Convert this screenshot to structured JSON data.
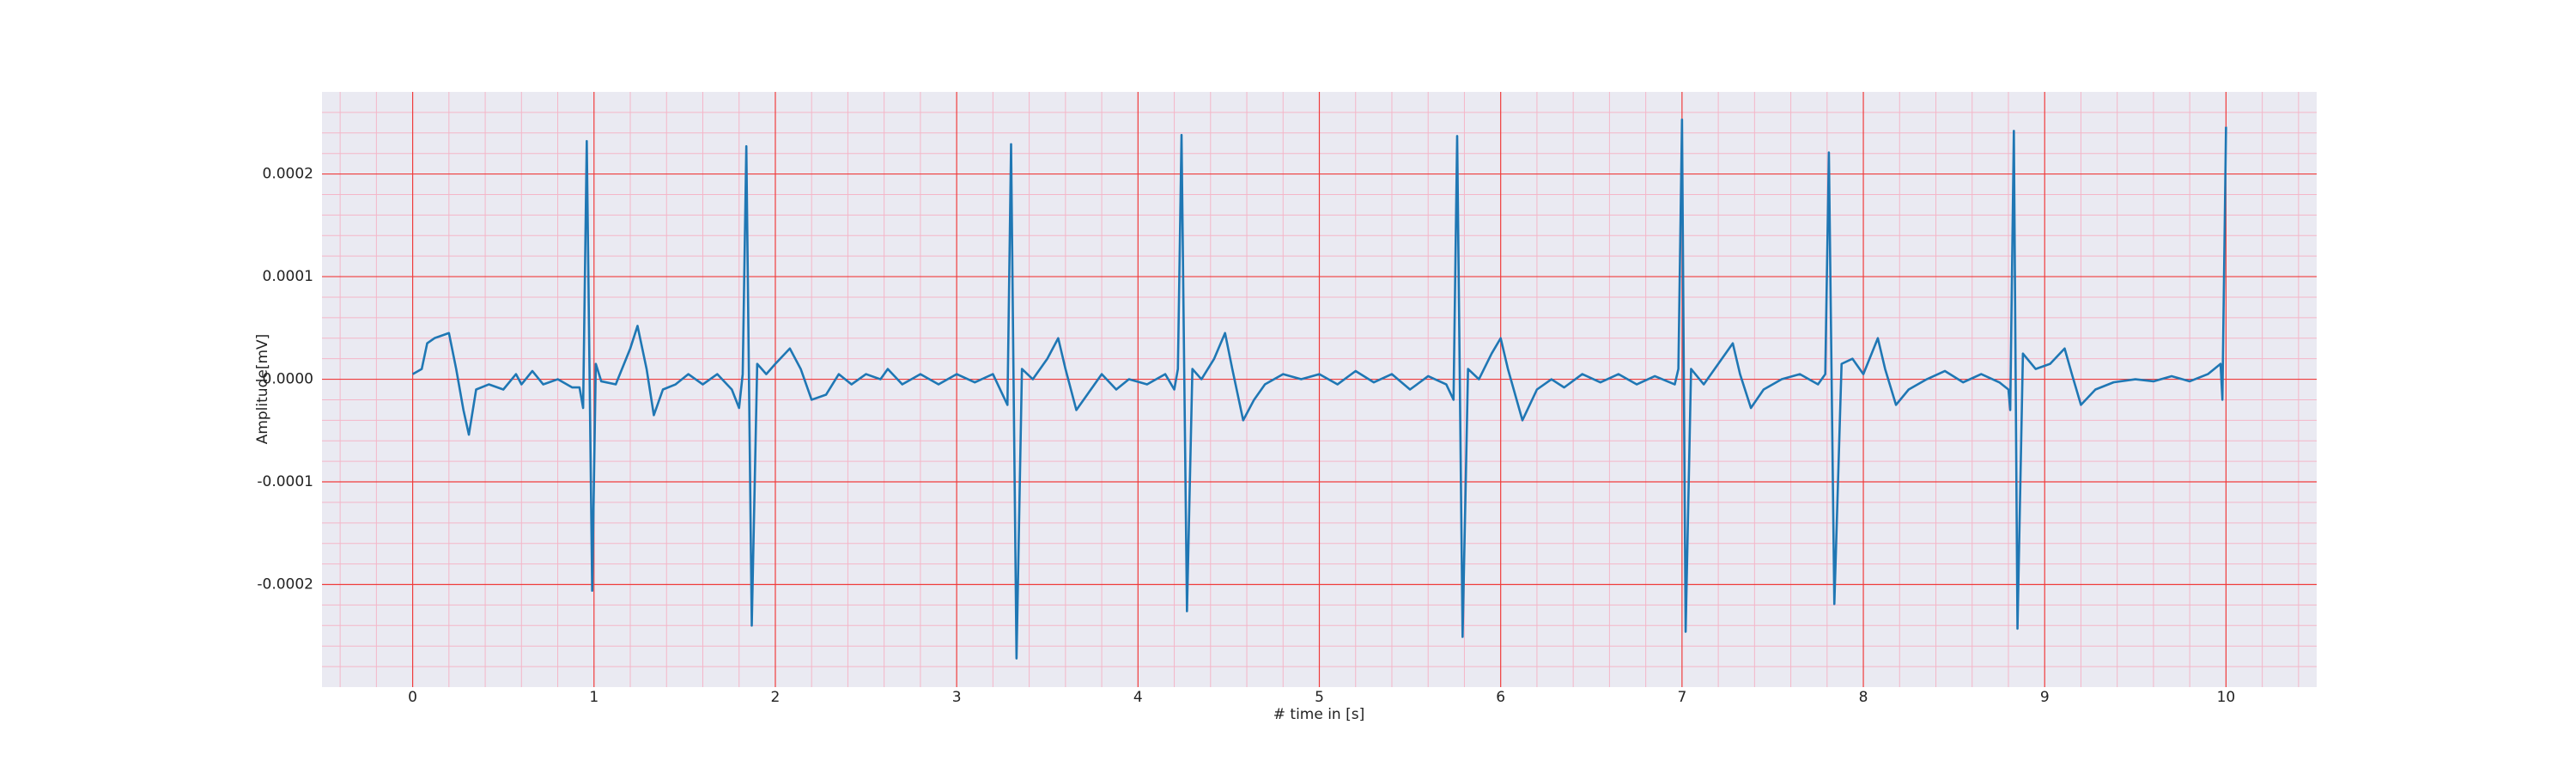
{
  "chart_data": {
    "type": "line",
    "xlabel": "# time in [s]",
    "ylabel": "Amplitude[mV]",
    "xlim": [
      -0.5,
      10.5
    ],
    "ylim": [
      -0.0003,
      0.00028
    ],
    "xticks": [
      0,
      1,
      2,
      3,
      4,
      5,
      6,
      7,
      8,
      9,
      10
    ],
    "yticks": [
      -0.0002,
      -0.0001,
      {
        "value": 0,
        "label": "0.0000"
      },
      0.0001,
      0.0002
    ],
    "xminorticks": [
      -0.4,
      -0.2,
      0.2,
      0.4,
      0.6,
      0.8,
      1.2,
      1.4,
      1.6,
      1.8,
      2.2,
      2.4,
      2.6,
      2.8,
      3.2,
      3.4,
      3.6,
      3.8,
      4.2,
      4.4,
      4.6,
      4.8,
      5.2,
      5.4,
      5.6,
      5.8,
      6.2,
      6.4,
      6.6,
      6.8,
      7.2,
      7.4,
      7.6,
      7.8,
      8.2,
      8.4,
      8.6,
      8.8,
      9.2,
      9.4,
      9.6,
      9.8,
      10.2,
      10.4
    ],
    "yminorticks": [
      -0.00028,
      -0.00026,
      -0.00024,
      -0.00022,
      -0.00018,
      -0.00016,
      -0.00014,
      -0.00012,
      -8e-05,
      -6e-05,
      -4e-05,
      -2e-05,
      2e-05,
      4e-05,
      6e-05,
      8e-05,
      0.00012,
      0.00014,
      0.00016,
      0.00018,
      0.00022,
      0.00024,
      0.00026
    ],
    "grid": true,
    "color": "#1f77b4",
    "x": [
      0,
      0.05,
      0.08,
      0.12,
      0.2,
      0.24,
      0.28,
      0.31,
      0.35,
      0.42,
      0.5,
      0.57,
      0.6,
      0.66,
      0.72,
      0.8,
      0.88,
      0.92,
      0.94,
      0.96,
      0.99,
      1.01,
      1.04,
      1.12,
      1.2,
      1.24,
      1.29,
      1.33,
      1.38,
      1.45,
      1.52,
      1.6,
      1.68,
      1.76,
      1.8,
      1.82,
      1.84,
      1.87,
      1.9,
      1.95,
      2.0,
      2.08,
      2.14,
      2.2,
      2.28,
      2.35,
      2.42,
      2.5,
      2.58,
      2.62,
      2.7,
      2.8,
      2.9,
      3.0,
      3.1,
      3.2,
      3.28,
      3.3,
      3.33,
      3.36,
      3.42,
      3.5,
      3.56,
      3.6,
      3.66,
      3.72,
      3.8,
      3.88,
      3.95,
      4.05,
      4.15,
      4.2,
      4.22,
      4.24,
      4.27,
      4.3,
      4.35,
      4.42,
      4.48,
      4.52,
      4.58,
      4.64,
      4.7,
      4.8,
      4.9,
      5.0,
      5.1,
      5.2,
      5.3,
      5.4,
      5.5,
      5.6,
      5.7,
      5.74,
      5.76,
      5.79,
      5.82,
      5.88,
      5.95,
      6.0,
      6.04,
      6.12,
      6.2,
      6.28,
      6.35,
      6.45,
      6.55,
      6.65,
      6.75,
      6.85,
      6.96,
      6.98,
      7.0,
      7.02,
      7.05,
      7.12,
      7.2,
      7.28,
      7.32,
      7.38,
      7.45,
      7.55,
      7.65,
      7.75,
      7.79,
      7.81,
      7.84,
      7.88,
      7.94,
      8.0,
      8.08,
      8.12,
      8.18,
      8.25,
      8.35,
      8.45,
      8.55,
      8.65,
      8.75,
      8.8,
      8.81,
      8.83,
      8.85,
      8.88,
      8.95,
      9.03,
      9.11,
      9.15,
      9.2,
      9.28,
      9.38,
      9.5,
      9.6,
      9.7,
      9.8,
      9.9,
      9.97,
      9.98,
      10.0
    ],
    "values": [
      5e-06,
      1e-05,
      3.5e-05,
      4e-05,
      4.5e-05,
      1e-05,
      -3e-05,
      -5.4e-05,
      -1e-05,
      -5e-06,
      -1e-05,
      5e-06,
      -5e-06,
      8e-06,
      -5e-06,
      0,
      -8e-06,
      -8e-06,
      -2.8e-05,
      0.000232,
      -0.000206,
      1.5e-05,
      -2e-06,
      -5e-06,
      3e-05,
      5.2e-05,
      1e-05,
      -3.5e-05,
      -1e-05,
      -5e-06,
      5e-06,
      -5e-06,
      5e-06,
      -1e-05,
      -2.8e-05,
      5e-06,
      0.000227,
      -0.00024,
      1.5e-05,
      5e-06,
      1.5e-05,
      3e-05,
      1e-05,
      -2e-05,
      -1.5e-05,
      5e-06,
      -5e-06,
      5e-06,
      0,
      1e-05,
      -5e-06,
      5e-06,
      -5e-06,
      5e-06,
      -3e-06,
      5e-06,
      -2.5e-05,
      0.000229,
      -0.000272,
      1e-05,
      0,
      2e-05,
      4e-05,
      1e-05,
      -3e-05,
      -1.5e-05,
      5e-06,
      -1e-05,
      0,
      -5e-06,
      5e-06,
      -1e-05,
      1e-05,
      0.000238,
      -0.000226,
      1e-05,
      0,
      2e-05,
      4.5e-05,
      1e-05,
      -4e-05,
      -2e-05,
      -5e-06,
      5e-06,
      0,
      5e-06,
      -5e-06,
      8e-06,
      -3e-06,
      5e-06,
      -1e-05,
      3e-06,
      -5e-06,
      -2e-05,
      0.000237,
      -0.000251,
      1e-05,
      0,
      2.5e-05,
      4e-05,
      1e-05,
      -4e-05,
      -1e-05,
      0,
      -8e-06,
      5e-06,
      -3e-06,
      5e-06,
      -5e-06,
      3e-06,
      -5e-06,
      1e-05,
      0.000253,
      -0.000246,
      1e-05,
      -5e-06,
      1.5e-05,
      3.5e-05,
      5e-06,
      -2.8e-05,
      -1e-05,
      0,
      5e-06,
      -5e-06,
      5e-06,
      0.000221,
      -0.000219,
      1.5e-05,
      2e-05,
      5e-06,
      4e-05,
      1e-05,
      -2.5e-05,
      -1e-05,
      0,
      8e-06,
      -3e-06,
      5e-06,
      -3e-06,
      -1e-05,
      -3e-05,
      0.000242,
      -0.000243,
      2.5e-05,
      1e-05,
      1.5e-05,
      3e-05,
      5e-06,
      -2.5e-05,
      -1e-05,
      -3e-06,
      0,
      -2e-06,
      3e-06,
      -2e-06,
      5e-06,
      1.5e-05,
      -2e-05,
      0.000246
    ]
  }
}
